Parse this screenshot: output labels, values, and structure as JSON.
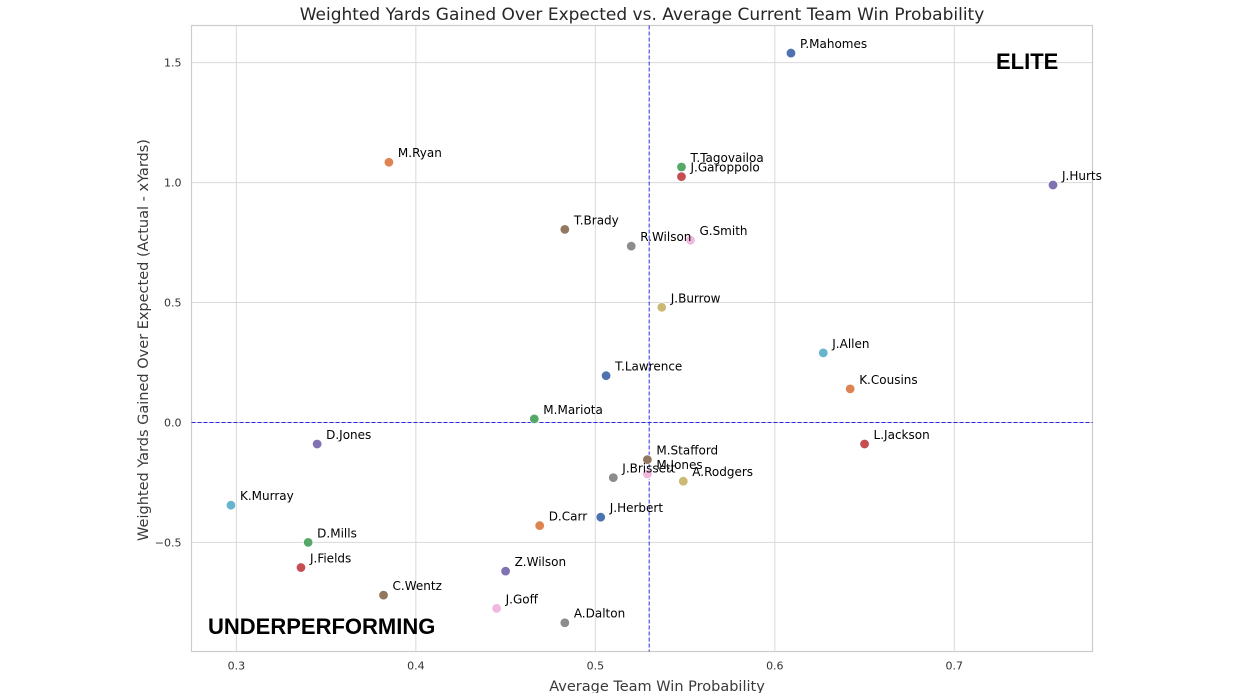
{
  "chart_data": {
    "type": "scatter",
    "title": "Weighted Yards Gained Over Expected vs. Average Current Team Win Probability",
    "xlabel": "Average Team Win Probability",
    "ylabel": "Weighted Yards Gained Over Expected (Actual - xYards)",
    "xlim": [
      0.275,
      0.777
    ],
    "ylim": [
      -0.955,
      1.655
    ],
    "xticks": [
      0.3,
      0.4,
      0.5,
      0.6,
      0.7
    ],
    "yticks": [
      1.5,
      1.0,
      0.5,
      0.0,
      -0.5
    ],
    "ytick_labels": [
      "1.5",
      "1.0",
      "0.5",
      "0.0",
      "−0.5"
    ],
    "xtick_labels": [
      "0.3",
      "0.4",
      "0.5",
      "0.6",
      "0.7"
    ],
    "grid": true,
    "reference_lines": {
      "x": 0.53,
      "y": 0.0,
      "color": "#2a2ae0",
      "style": "dashed"
    },
    "quadrant_labels": [
      {
        "text": "ELITE",
        "position": "top-right"
      },
      {
        "text": "UNDERPERFORMING",
        "position": "bottom-left"
      }
    ],
    "points": [
      {
        "name": "P.Mahomes",
        "x": 0.609,
        "y": 1.54,
        "color": "#4c72b0"
      },
      {
        "name": "M.Ryan",
        "x": 0.385,
        "y": 1.085,
        "color": "#dd8452"
      },
      {
        "name": "T.Tagovailoa",
        "x": 0.548,
        "y": 1.065,
        "color": "#55a868"
      },
      {
        "name": "J.Garoppolo",
        "x": 0.548,
        "y": 1.025,
        "color": "#c44e52"
      },
      {
        "name": "J.Hurts",
        "x": 0.755,
        "y": 0.99,
        "color": "#8172b3"
      },
      {
        "name": "T.Brady",
        "x": 0.483,
        "y": 0.805,
        "color": "#937860"
      },
      {
        "name": "R.Wilson",
        "x": 0.52,
        "y": 0.735,
        "color": "#8c8c8c"
      },
      {
        "name": "G.Smith",
        "x": 0.553,
        "y": 0.76,
        "color": "#f0b7df"
      },
      {
        "name": "J.Burrow",
        "x": 0.537,
        "y": 0.48,
        "color": "#ccb974"
      },
      {
        "name": "J.Allen",
        "x": 0.627,
        "y": 0.29,
        "color": "#64b5cd"
      },
      {
        "name": "K.Cousins",
        "x": 0.642,
        "y": 0.14,
        "color": "#dd8452"
      },
      {
        "name": "T.Lawrence",
        "x": 0.506,
        "y": 0.195,
        "color": "#4c72b0"
      },
      {
        "name": "M.Mariota",
        "x": 0.466,
        "y": 0.015,
        "color": "#55a868"
      },
      {
        "name": "D.Jones",
        "x": 0.345,
        "y": -0.09,
        "color": "#8172b3"
      },
      {
        "name": "L.Jackson",
        "x": 0.65,
        "y": -0.09,
        "color": "#c44e52"
      },
      {
        "name": "M.Stafford",
        "x": 0.529,
        "y": -0.155,
        "color": "#937860"
      },
      {
        "name": "M.Jones",
        "x": 0.529,
        "y": -0.215,
        "color": "#f0b7df"
      },
      {
        "name": "J.Brissett",
        "x": 0.51,
        "y": -0.23,
        "color": "#8c8c8c"
      },
      {
        "name": "A.Rodgers",
        "x": 0.549,
        "y": -0.245,
        "color": "#ccb974"
      },
      {
        "name": "K.Murray",
        "x": 0.297,
        "y": -0.345,
        "color": "#64b5cd"
      },
      {
        "name": "J.Herbert",
        "x": 0.503,
        "y": -0.395,
        "color": "#4c72b0"
      },
      {
        "name": "D.Carr",
        "x": 0.469,
        "y": -0.43,
        "color": "#dd8452"
      },
      {
        "name": "D.Mills",
        "x": 0.34,
        "y": -0.5,
        "color": "#55a868"
      },
      {
        "name": "J.Fields",
        "x": 0.336,
        "y": -0.605,
        "color": "#c44e52"
      },
      {
        "name": "Z.Wilson",
        "x": 0.45,
        "y": -0.62,
        "color": "#8172b3"
      },
      {
        "name": "C.Wentz",
        "x": 0.382,
        "y": -0.72,
        "color": "#937860"
      },
      {
        "name": "J.Goff",
        "x": 0.445,
        "y": -0.775,
        "color": "#f0b7df"
      },
      {
        "name": "A.Dalton",
        "x": 0.483,
        "y": -0.835,
        "color": "#8c8c8c"
      }
    ]
  }
}
